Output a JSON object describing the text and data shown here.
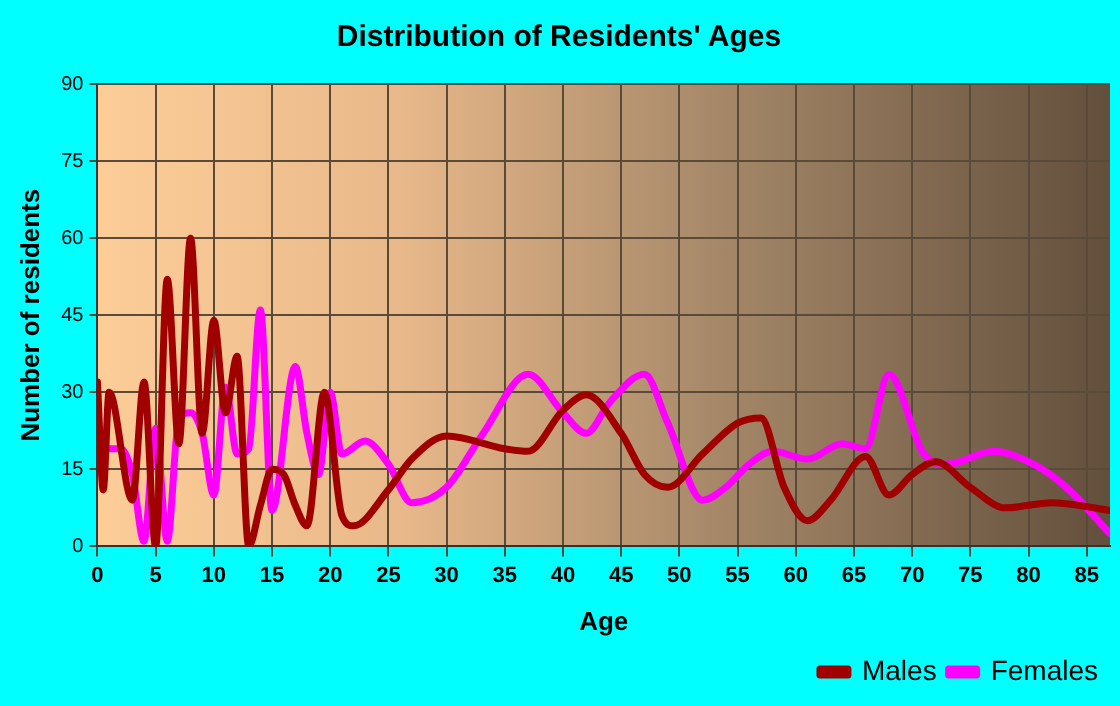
{
  "chart_data": {
    "type": "line",
    "title": "Distribution of Residents' Ages",
    "xlabel": "Age",
    "ylabel": "Number of residents",
    "xlim": [
      0,
      87
    ],
    "xticks": [
      0,
      5,
      10,
      15,
      20,
      25,
      30,
      35,
      40,
      45,
      50,
      55,
      60,
      65,
      70,
      75,
      80,
      85
    ],
    "ylim": [
      0,
      90
    ],
    "yticks": [
      0,
      15,
      30,
      45,
      60,
      75,
      90
    ],
    "grid": true,
    "legend": "bottom right",
    "marker": "none",
    "line_style": "solid",
    "series": [
      {
        "name": "Males",
        "color": "#a00000",
        "x": [
          0,
          0.5,
          1,
          3,
          4,
          5,
          6,
          7,
          8,
          9,
          10,
          11,
          12,
          13,
          14,
          15,
          16,
          17,
          18,
          19.5,
          21,
          22,
          25,
          27,
          30,
          35,
          37,
          40,
          42,
          45,
          47,
          49,
          52,
          55,
          57,
          59,
          61,
          63,
          66,
          68,
          70,
          72,
          75,
          78,
          82,
          87
        ],
        "values": [
          32,
          11,
          30,
          9,
          32,
          0,
          52,
          20,
          60,
          22,
          44,
          26,
          37,
          0,
          8,
          15,
          14,
          8,
          4,
          30,
          6,
          4,
          11,
          17,
          21.5,
          19,
          18.5,
          26.5,
          29.5,
          22,
          14,
          11.5,
          18,
          24,
          25,
          11.5,
          5,
          9,
          17.5,
          10,
          14,
          16.5,
          11.5,
          7.5,
          8.5,
          7
        ]
      },
      {
        "name": "Females",
        "color": "#ff00ff",
        "x": [
          1,
          2,
          3,
          4,
          5,
          6,
          7,
          8,
          9,
          10,
          11,
          12,
          13,
          14,
          15,
          17,
          18,
          19,
          20,
          21,
          23,
          25,
          27,
          30,
          33,
          37,
          40,
          42,
          44,
          47,
          49,
          52,
          54,
          56,
          58,
          61,
          64,
          66,
          68,
          71,
          73,
          77,
          80,
          83,
          87
        ],
        "values": [
          19,
          19,
          14,
          1,
          23,
          1,
          25,
          26,
          22,
          10,
          31,
          18,
          19,
          46,
          7,
          35,
          22,
          14,
          30,
          18,
          20.5,
          16,
          8.5,
          11.5,
          21.5,
          33.5,
          26,
          22,
          28,
          33.5,
          24,
          9,
          11.5,
          16,
          18.5,
          17,
          20,
          19,
          33.5,
          18,
          16,
          18.5,
          16.5,
          12,
          2.5
        ]
      }
    ]
  }
}
